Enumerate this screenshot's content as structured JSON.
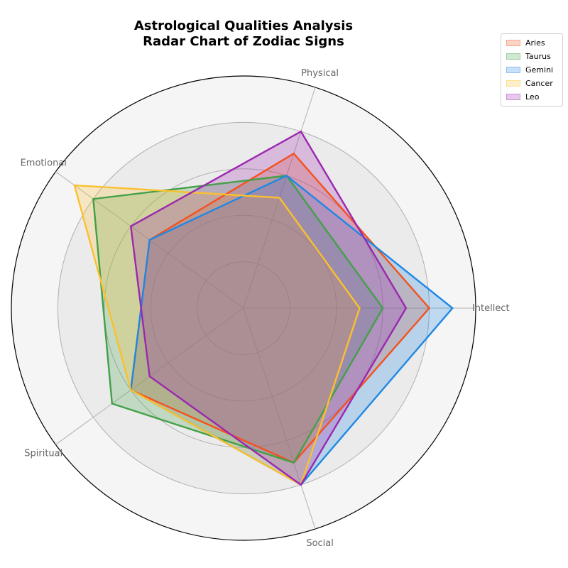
{
  "chart_data": {
    "type": "radar",
    "title": "Astrological Qualities Analysis",
    "subtitle": "Radar Chart of Zodiac Signs",
    "axes": [
      "Intellect",
      "Physical",
      "Emotional",
      "Spiritual",
      "Social"
    ],
    "rlim": [
      0,
      10
    ],
    "grid_rings": [
      2,
      4,
      6,
      8,
      10
    ],
    "grid": true,
    "legend_position": "top-right",
    "series": [
      {
        "name": "Aries",
        "values": [
          8,
          7,
          5,
          6,
          7
        ],
        "color": "#f4511e"
      },
      {
        "name": "Taurus",
        "values": [
          6,
          6,
          8,
          7,
          7
        ],
        "color": "#43a047"
      },
      {
        "name": "Gemini",
        "values": [
          9,
          6,
          5,
          6,
          8
        ],
        "color": "#1e88e5"
      },
      {
        "name": "Cancer",
        "values": [
          5,
          5,
          9,
          6,
          8
        ],
        "color": "#fbc02d"
      },
      {
        "name": "Leo",
        "values": [
          7,
          8,
          6,
          5,
          8
        ],
        "color": "#9c27b0"
      }
    ]
  }
}
